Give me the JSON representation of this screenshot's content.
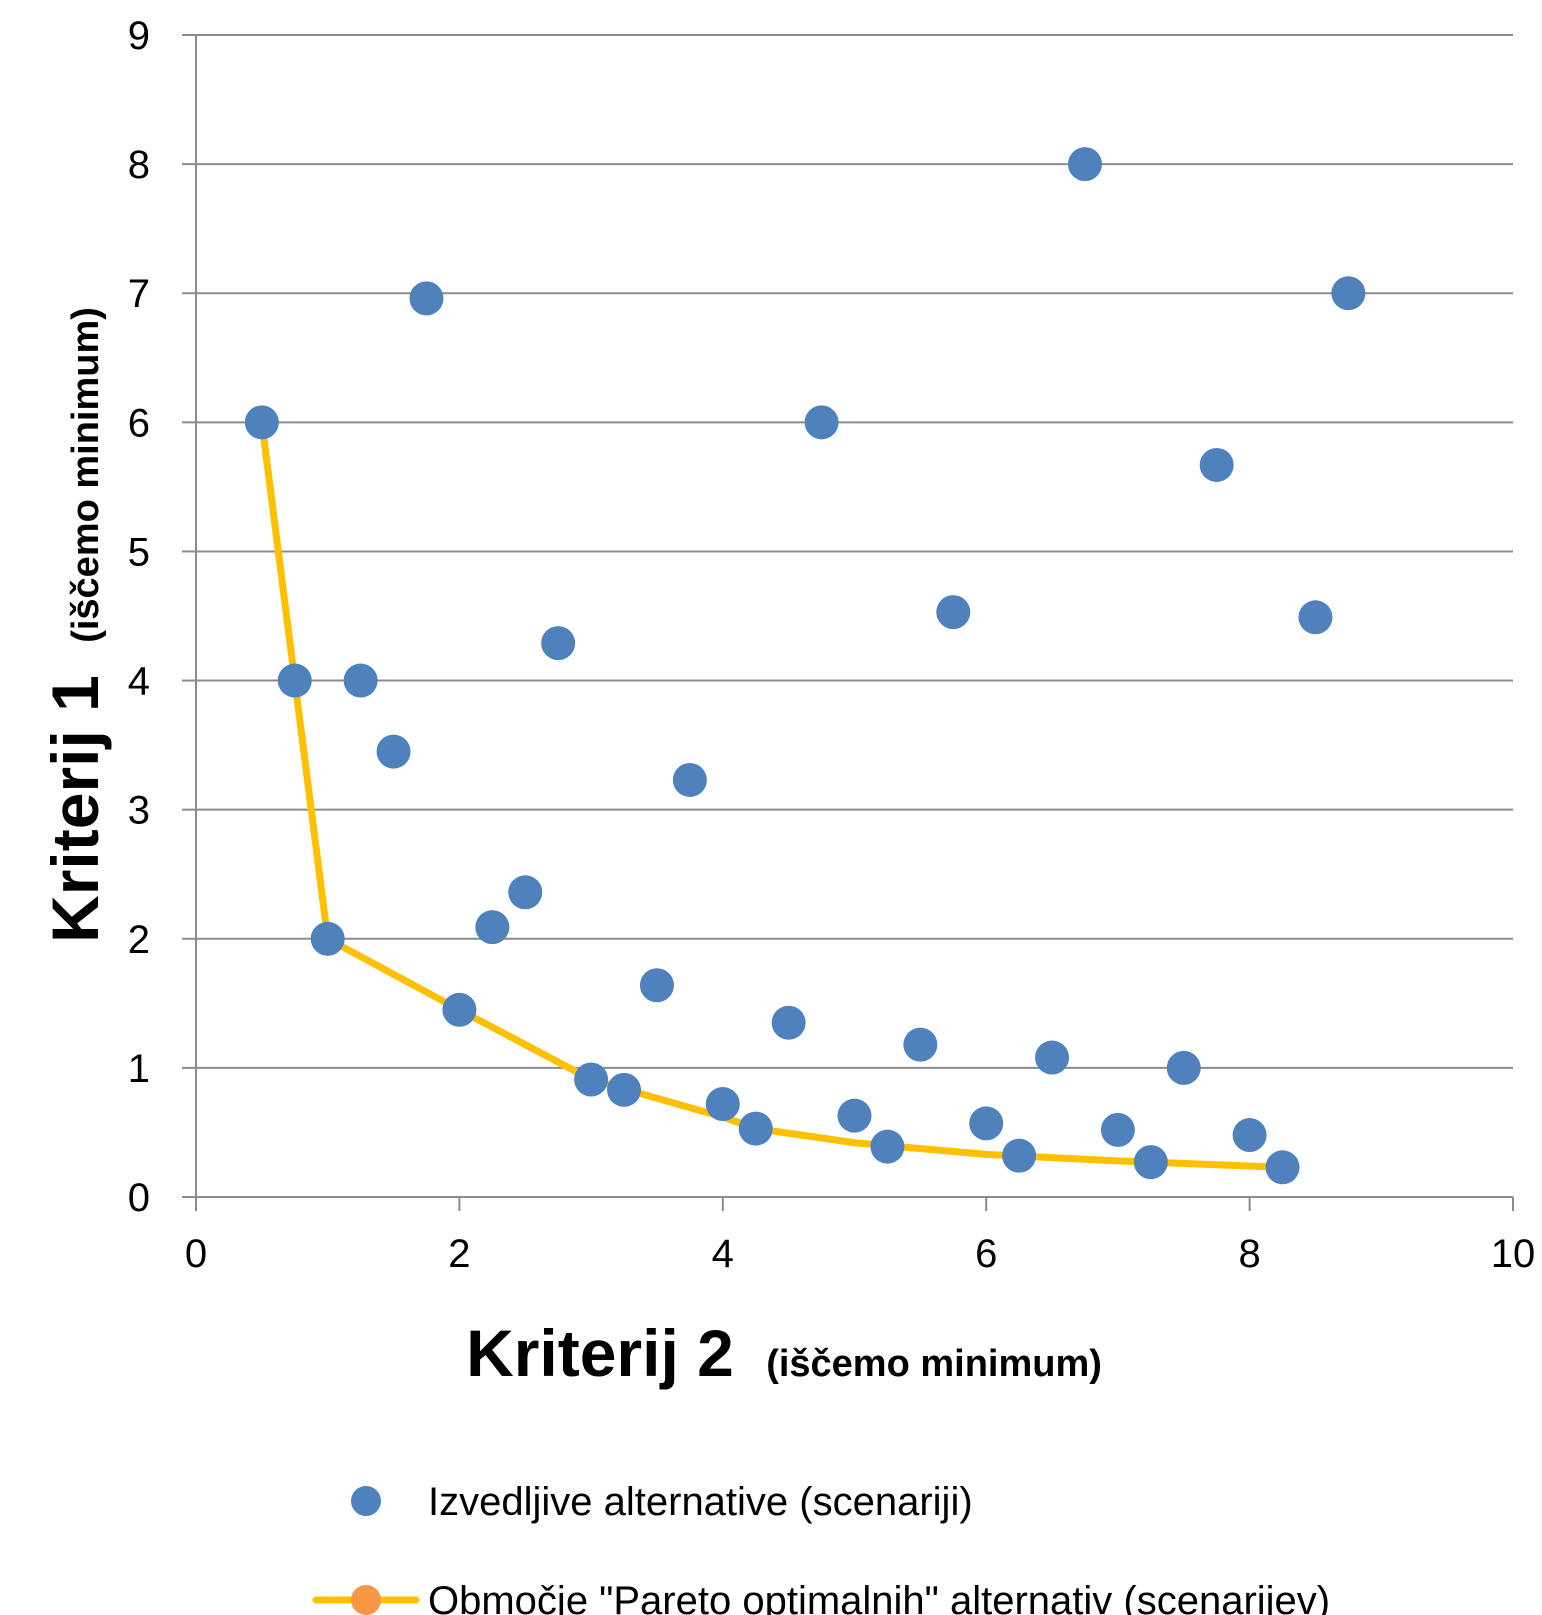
{
  "chart_data": {
    "type": "scatter",
    "xlim": [
      0,
      10
    ],
    "ylim": [
      0,
      9
    ],
    "x_ticks": [
      "0",
      "2",
      "4",
      "6",
      "8",
      "10"
    ],
    "y_ticks": [
      "0",
      "1",
      "2",
      "3",
      "4",
      "5",
      "6",
      "7",
      "8",
      "9"
    ],
    "grid": "horizontal",
    "legend_position": "bottom",
    "xlabel": {
      "main": "Kriterij 2",
      "sub": "(iščemo minimum)"
    },
    "ylabel": {
      "main": "Kriterij 1",
      "sub": "(iščemo minimum)"
    },
    "series": [
      {
        "name": "Izvedljive alternative (scenariji)",
        "kind": "scatter",
        "color": "#4F81BD",
        "points": [
          [
            0.5,
            6.0
          ],
          [
            0.75,
            4.0
          ],
          [
            1.0,
            2.0
          ],
          [
            1.25,
            4.0
          ],
          [
            1.5,
            3.45
          ],
          [
            1.75,
            6.96
          ],
          [
            2.0,
            1.45
          ],
          [
            2.25,
            2.09
          ],
          [
            2.5,
            2.36
          ],
          [
            2.75,
            4.29
          ],
          [
            3.0,
            0.91
          ],
          [
            3.25,
            0.83
          ],
          [
            3.5,
            1.64
          ],
          [
            3.75,
            3.23
          ],
          [
            4.0,
            0.72
          ],
          [
            4.25,
            0.53
          ],
          [
            4.5,
            1.35
          ],
          [
            4.75,
            6.0
          ],
          [
            5.0,
            0.63
          ],
          [
            5.25,
            0.39
          ],
          [
            5.5,
            1.18
          ],
          [
            5.75,
            4.53
          ],
          [
            6.0,
            0.57
          ],
          [
            6.25,
            0.32
          ],
          [
            6.5,
            1.08
          ],
          [
            6.75,
            8.0
          ],
          [
            7.0,
            0.52
          ],
          [
            7.25,
            0.27
          ],
          [
            7.5,
            1.0
          ],
          [
            7.75,
            5.67
          ],
          [
            8.0,
            0.48
          ],
          [
            8.25,
            0.23
          ],
          [
            8.5,
            4.49
          ],
          [
            8.75,
            7.0
          ]
        ]
      },
      {
        "name": "Območje \"Pareto optimalnih\" alternativ (scenarijev)",
        "kind": "line",
        "color": "#FFC000",
        "marker_color": "#F79646",
        "points": [
          [
            0.5,
            6.0
          ],
          [
            1.0,
            2.0
          ],
          [
            2.0,
            1.45
          ],
          [
            3.0,
            0.91
          ],
          [
            4.0,
            0.62
          ],
          [
            4.25,
            0.53
          ],
          [
            5.0,
            0.42
          ],
          [
            6.0,
            0.33
          ],
          [
            7.0,
            0.28
          ],
          [
            8.25,
            0.23
          ]
        ]
      }
    ]
  }
}
